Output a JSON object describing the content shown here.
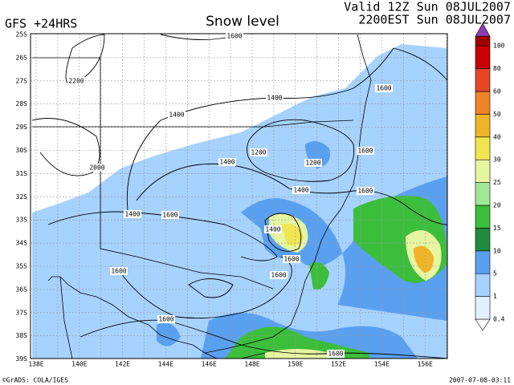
{
  "header": {
    "model": "GFS +24HRS",
    "title": "Snow level",
    "valid": "Valid 12Z Sun 08JUL2007",
    "local": "2200EST Sun 08JUL2007"
  },
  "map": {
    "lat_labels": [
      "25S",
      "26S",
      "27S",
      "28S",
      "29S",
      "30S",
      "31S",
      "32S",
      "33S",
      "34S",
      "35S",
      "36S",
      "37S",
      "38S",
      "39S"
    ],
    "lon_labels": [
      "138E",
      "140E",
      "142E",
      "144E",
      "146E",
      "148E",
      "150E",
      "152E",
      "154E",
      "156E"
    ],
    "contour_labels": [
      1600,
      2200,
      1400,
      1400,
      1600,
      1600,
      1200,
      1200,
      1400,
      2000,
      1400,
      1600,
      1400,
      1600,
      1400,
      1600,
      1600,
      1600,
      1600,
      1600
    ]
  },
  "colorbar": {
    "labels": [
      "0.4",
      "1",
      "5",
      "10",
      "15",
      "20",
      "25",
      "30",
      "40",
      "50",
      "60",
      "80",
      "100"
    ],
    "colors": [
      "#e1f0ff",
      "#a6d2ff",
      "#5aa0f0",
      "#1e8c3c",
      "#3cbe3c",
      "#a0e696",
      "#e6f5a0",
      "#f0e650",
      "#f0b428",
      "#f08228",
      "#e64628",
      "#c80000",
      "#a00000"
    ],
    "top_color": "#8c3cb4",
    "bottom_color": "#ffffff"
  },
  "footer": {
    "credit": "©GrADS: COLA/IGES",
    "timestamp": "2007-07-08-03:11"
  }
}
